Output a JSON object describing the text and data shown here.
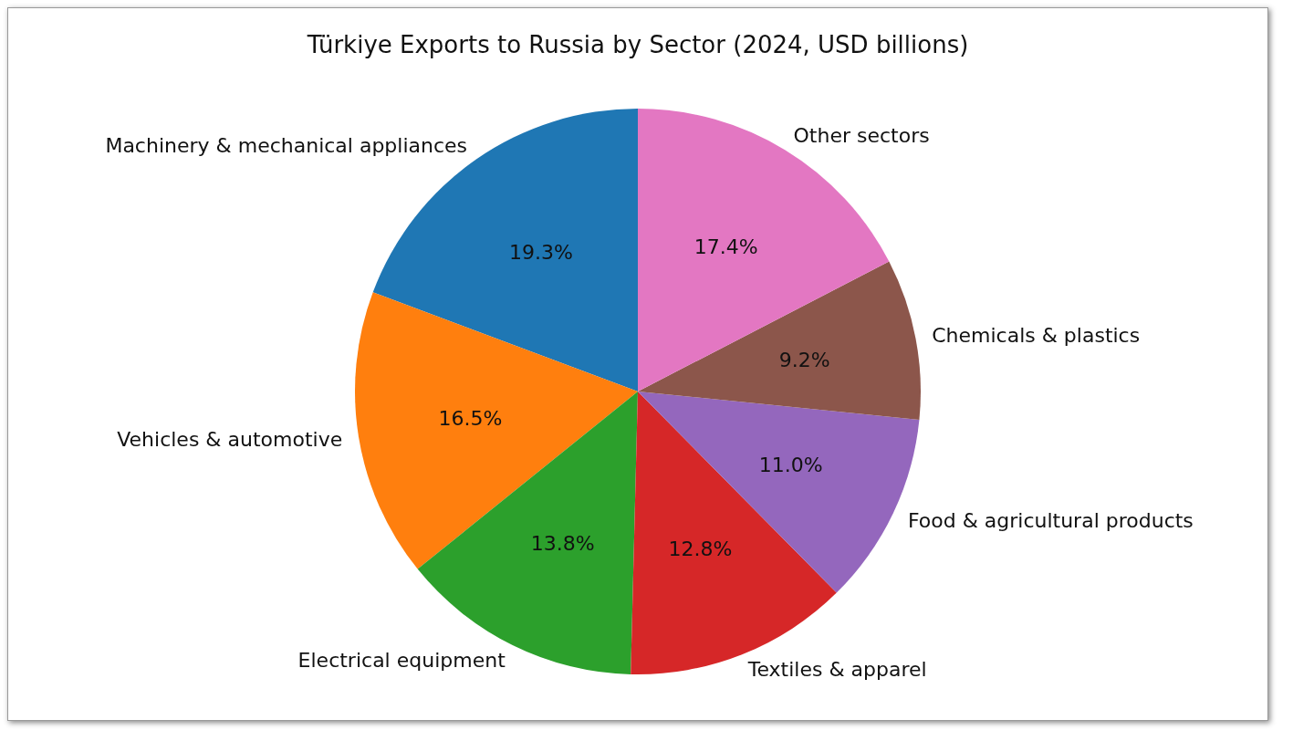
{
  "chart_data": {
    "type": "pie",
    "title": "Türkiye Exports to Russia by Sector (2024, USD billions)",
    "categories": [
      "Machinery & mechanical appliances",
      "Vehicles & automotive",
      "Electrical equipment",
      "Textiles & apparel",
      "Food & agricultural products",
      "Chemicals & plastics",
      "Other sectors"
    ],
    "values": [
      19.3,
      16.5,
      13.8,
      12.8,
      11.0,
      9.2,
      17.4
    ],
    "value_labels": [
      "19.3%",
      "16.5%",
      "13.8%",
      "12.8%",
      "11.0%",
      "9.2%",
      "17.4%"
    ],
    "colors": [
      "#1f77b4",
      "#ff7f0e",
      "#2ca02c",
      "#d62728",
      "#9467bd",
      "#8c564b",
      "#e377c2"
    ],
    "legend": false
  }
}
